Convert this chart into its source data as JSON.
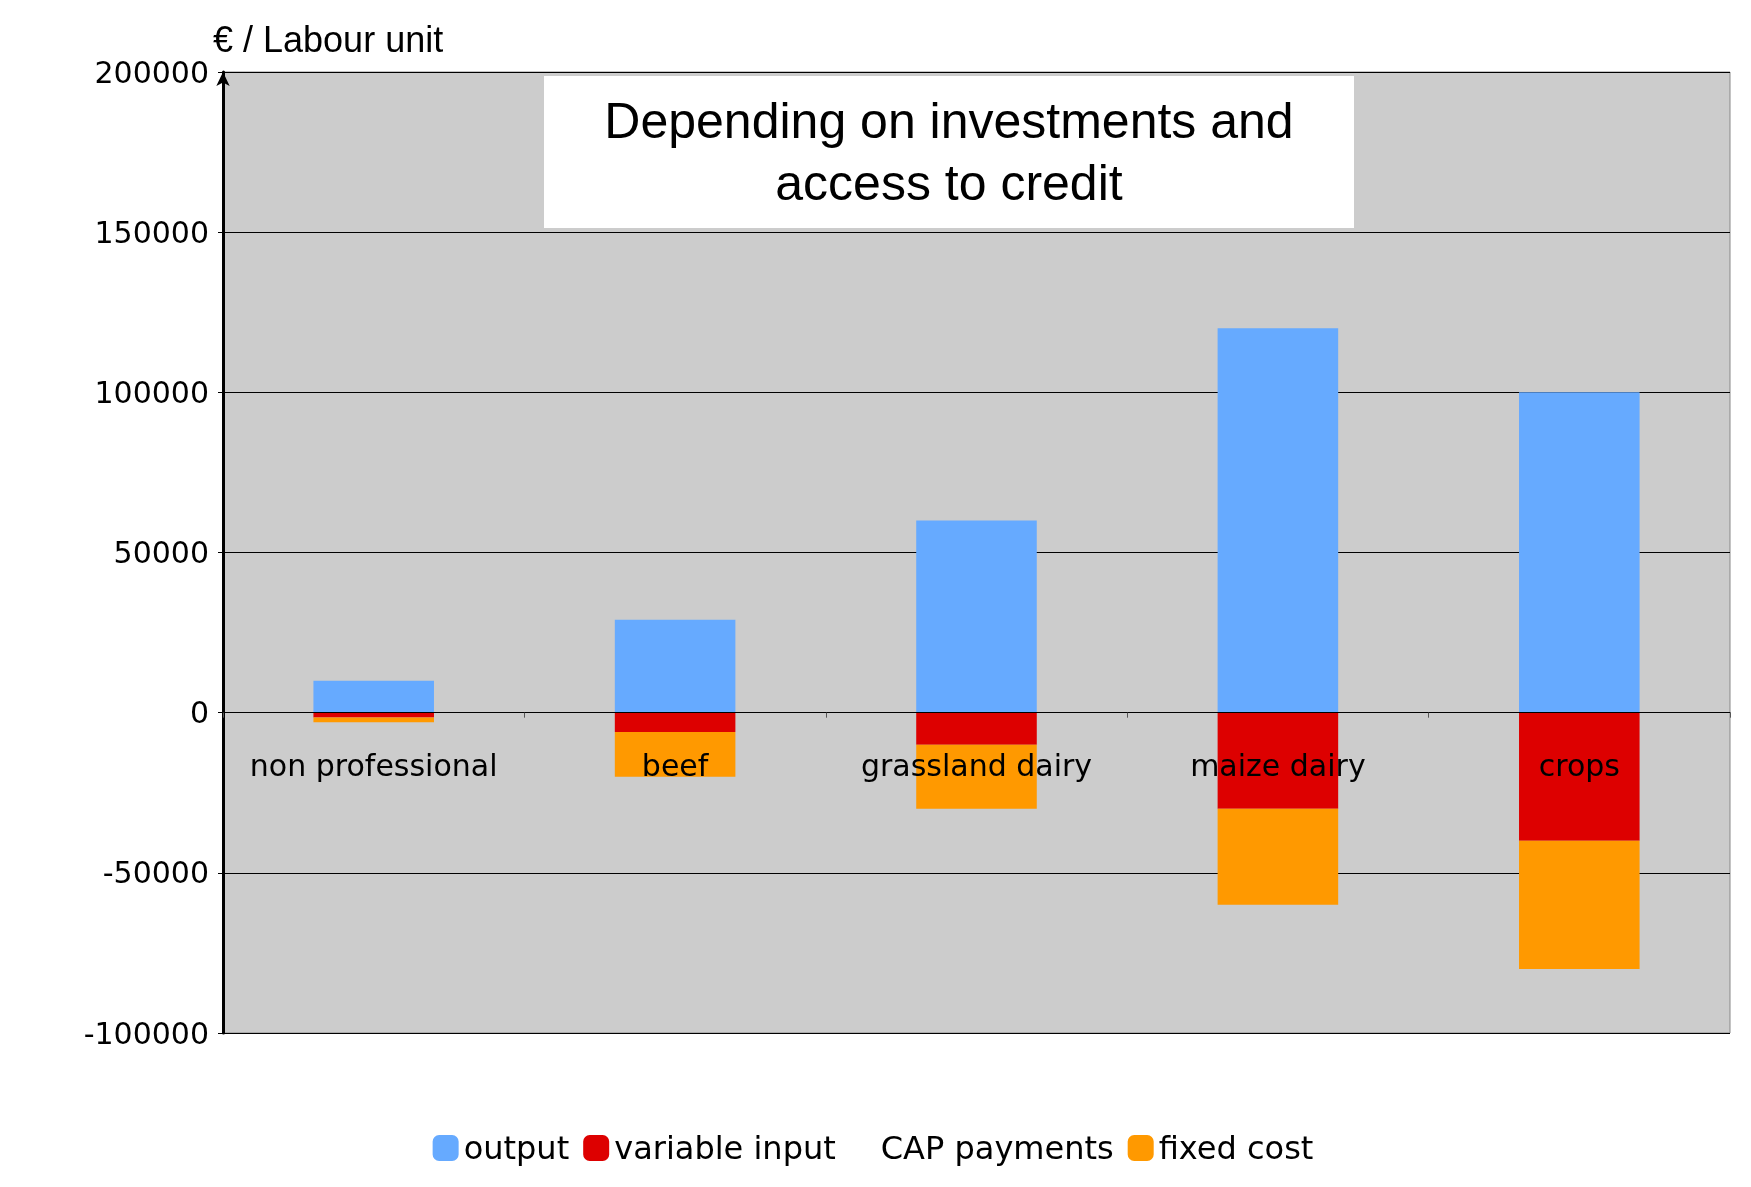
{
  "chart_data": {
    "type": "bar",
    "title": "Depending on investments and access to credit",
    "ylabel": "€ / Labour unit",
    "categories": [
      "non professional",
      "beef",
      "grassland dairy",
      "maize dairy",
      "crops"
    ],
    "series": [
      {
        "name": "output",
        "color": "#66aaff",
        "values": [
          10000,
          29000,
          60000,
          120000,
          100000
        ]
      },
      {
        "name": "variable input",
        "color": "#dd0000",
        "values": [
          -1500,
          -6000,
          -10000,
          -30000,
          -40000
        ]
      },
      {
        "name": "CAP payments",
        "values": [
          null,
          null,
          null,
          null,
          null
        ]
      },
      {
        "name": "fixed cost",
        "color": "#ff9900",
        "values": [
          -1500,
          -14000,
          -20000,
          -30000,
          -40000
        ]
      }
    ],
    "stacked": true,
    "ylim": [
      -100000,
      200000
    ],
    "yticks": [
      -100000,
      -50000,
      0,
      50000,
      100000,
      150000,
      200000
    ],
    "grid": "y",
    "legend": "bottom"
  }
}
